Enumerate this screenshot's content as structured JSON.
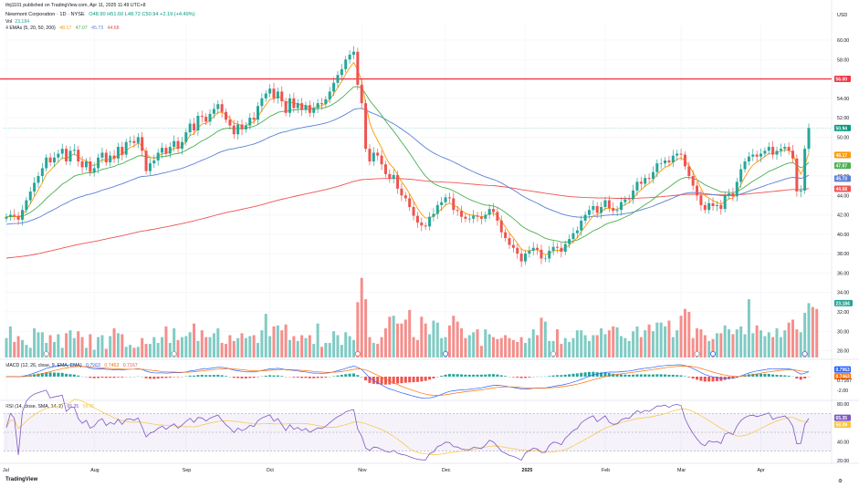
{
  "header": {
    "publisher": "thij1101 published on TradingView.com, Apr 11, 2025 11:49 UTC+8",
    "symbol_line": "Newmont Corporation · 1D · NYSE",
    "ohlc": "O48.90 H51.60 L48.72 C50.94 +2.19 (+4.49%)",
    "vol_label": "Vol",
    "vol_value": "23.184",
    "ema_label": "4 EMAs (5, 20, 50, 200)",
    "ema_values": [
      "48.17",
      "47.07",
      "45.73",
      "44.68"
    ],
    "macd_label": "MACD (12, 26, close, 9, EMA, EMA)",
    "macd_values": [
      "0.7963",
      "0.7463",
      "0.7167"
    ],
    "rsi_label": "RSI (14, close, SMA, 14, 2)",
    "rsi_values": [
      "65.35",
      "58.09"
    ]
  },
  "currency": "USD",
  "watermark": "TradingView",
  "colors": {
    "up": "#26a69a",
    "down": "#ef5350",
    "vol_up": "#80cbc4",
    "vol_down": "#f48f8c",
    "ema5": "#ff9800",
    "ema20": "#4caf50",
    "ema50": "#5b7fd6",
    "ema200": "#f05252",
    "rsi": "#7e57c2",
    "rsi_ma": "#f9c43d",
    "hline": "#f23645"
  },
  "chart_data": {
    "type": "candlestick",
    "x_labels": [
      "Jul",
      "Aug",
      "Sep",
      "Oct",
      "Nov",
      "Dec",
      "2025",
      "Feb",
      "Mar",
      "Apr"
    ],
    "price_ticks": [
      "60.00",
      "58.00",
      "56.00",
      "54.00",
      "52.00",
      "50.00",
      "48.00",
      "46.00",
      "44.00",
      "42.00",
      "40.00",
      "38.00",
      "36.00",
      "34.00",
      "32.00",
      "30.00",
      "28.00"
    ],
    "ylim": [
      27.3,
      61.5
    ],
    "horizontal_line": 56.0,
    "last_close": 50.94,
    "price_badges": [
      {
        "label": "56.00",
        "value": 56.0,
        "color": "#f23645"
      },
      {
        "label": "50.94",
        "value": 50.94,
        "color": "#089981"
      },
      {
        "label": "48.17",
        "value": 48.17,
        "color": "#ff9800"
      },
      {
        "label": "47.07",
        "value": 47.07,
        "color": "#4caf50"
      },
      {
        "label": "45.73",
        "value": 45.73,
        "color": "#5b7fd6"
      },
      {
        "label": "44.68",
        "value": 44.68,
        "color": "#f05252"
      }
    ],
    "vol_badge": "23.184",
    "closes": [
      41.8,
      42.0,
      41.9,
      41.5,
      42.5,
      43.5,
      44.4,
      45.3,
      46.0,
      46.8,
      47.9,
      47.4,
      47.9,
      48.3,
      48.8,
      47.5,
      48.6,
      48.7,
      47.5,
      46.9,
      47.5,
      46.4,
      46.8,
      47.9,
      48.4,
      47.4,
      48.1,
      47.8,
      49.0,
      48.2,
      49.5,
      49.6,
      49.4,
      50.0,
      48.6,
      46.5,
      47.3,
      47.6,
      48.4,
      48.9,
      48.3,
      49.0,
      49.6,
      48.8,
      49.5,
      50.5,
      51.4,
      50.7,
      52.2,
      52.1,
      51.6,
      52.4,
      52.9,
      53.4,
      52.6,
      51.8,
      51.2,
      50.3,
      51.3,
      50.8,
      51.2,
      52.0,
      51.8,
      53.2,
      54.0,
      54.5,
      55.0,
      54.0,
      54.7,
      53.7,
      52.5,
      54.0,
      53.0,
      53.5,
      52.8,
      53.3,
      52.5,
      53.0,
      53.5,
      53.4,
      53.9,
      54.7,
      55.6,
      56.4,
      57.0,
      58.0,
      58.5,
      58.8,
      55.4,
      53.5,
      48.8,
      47.5,
      48.4,
      48.1,
      47.2,
      46.2,
      45.7,
      46.1,
      44.7,
      44.0,
      43.7,
      42.8,
      41.9,
      41.2,
      40.9,
      40.8,
      41.8,
      42.1,
      43.0,
      43.3,
      43.8,
      43.7,
      42.5,
      42.4,
      41.8,
      41.6,
      41.6,
      41.9,
      41.8,
      41.6,
      42.0,
      42.6,
      42.3,
      41.4,
      40.2,
      39.6,
      38.9,
      38.6,
      38.0,
      37.2,
      38.0,
      38.3,
      38.6,
      38.4,
      37.5,
      37.5,
      38.3,
      38.7,
      38.6,
      38.2,
      39.0,
      39.5,
      40.1,
      40.4,
      41.4,
      42.0,
      42.5,
      42.9,
      42.2,
      42.8,
      43.5,
      42.7,
      42.4,
      42.5,
      43.3,
      43.6,
      43.6,
      44.5,
      45.4,
      45.2,
      45.8,
      45.7,
      46.4,
      47.3,
      47.3,
      47.6,
      47.4,
      48.1,
      48.3,
      48.2,
      47.0,
      46.0,
      45.0,
      44.0,
      43.0,
      42.5,
      43.2,
      42.9,
      43.0,
      42.6,
      44.0,
      44.2,
      43.9,
      45.4,
      46.7,
      47.5,
      48.0,
      48.2,
      48.0,
      48.3,
      48.6,
      49.0,
      48.2,
      48.6,
      48.8,
      49.0,
      48.6,
      47.8,
      44.4,
      44.5,
      48.8,
      50.94
    ],
    "volumes": [
      29.3,
      30.5,
      28.9,
      29.5,
      29.1,
      28.6,
      28.3,
      30.3,
      29.9,
      29.9,
      28.8,
      29.6,
      28.9,
      29.7,
      28.3,
      29.8,
      30.1,
      29.3,
      30.0,
      29.4,
      28.3,
      29.7,
      28.1,
      29.4,
      29.6,
      28.2,
      29.5,
      30.3,
      29.8,
      29.7,
      28.4,
      28.6,
      28.3,
      28.4,
      29.3,
      28.7,
      28.7,
      29.4,
      28.8,
      29.4,
      30.5,
      28.8,
      30.3,
      29.1,
      29.4,
      29.5,
      29.9,
      30.8,
      29.0,
      30.1,
      29.4,
      29.4,
      29.8,
      30.3,
      28.8,
      28.7,
      29.6,
      29.0,
      29.3,
      29.8,
      29.3,
      29.5,
      29.6,
      28.8,
      30.1,
      31.8,
      29.5,
      30.5,
      30.6,
      30.1,
      30.7,
      29.1,
      29.5,
      29.0,
      29.6,
      29.3,
      29.6,
      28.7,
      30.8,
      28.4,
      28.8,
      28.8,
      30.0,
      29.6,
      28.6,
      29.9,
      29.5,
      29.1,
      33.0,
      35.5,
      33.3,
      29.4,
      28.8,
      28.7,
      29.4,
      30.3,
      31.5,
      31.6,
      30.8,
      30.8,
      31.2,
      32.2,
      29.4,
      29.1,
      31.5,
      30.8,
      29.7,
      31.1,
      30.9,
      29.3,
      29.4,
      30.6,
      31.6,
      31.0,
      30.3,
      29.3,
      29.6,
      29.9,
      30.2,
      28.5,
      30.2,
      29.7,
      29.4,
      29.2,
      29.3,
      29.6,
      29.3,
      29.1,
      28.9,
      29.4,
      28.8,
      29.3,
      30.2,
      29.6,
      31.4,
      31.0,
      29.0,
      29.0,
      30.2,
      28.7,
      29.3,
      28.9,
      29.3,
      30.1,
      30.1,
      29.6,
      29.0,
      29.6,
      29.6,
      30.3,
      29.7,
      30.1,
      30.5,
      30.4,
      29.5,
      29.3,
      29.0,
      30.0,
      30.5,
      29.4,
      30.1,
      30.7,
      30.0,
      30.9,
      30.9,
      30.5,
      31.1,
      29.4,
      30.1,
      31.6,
      32.3,
      32.0,
      29.3,
      30.3,
      30.2,
      29.6,
      29.0,
      29.2,
      29.8,
      29.8,
      30.6,
      30.2,
      29.7,
      30.2,
      30.5,
      29.7,
      33.3,
      29.8,
      30.6,
      30.1,
      29.5,
      29.9,
      29.4,
      30.3,
      29.4,
      30.1,
      30.9,
      31.2,
      30.2,
      29.9,
      31.9,
      32.9,
      32.5,
      32.3
    ],
    "macd_ylim": [
      -3.2,
      1.6
    ],
    "rsi_ylim": [
      20,
      80
    ],
    "rsi_levels": [
      70,
      50,
      30
    ],
    "macd_ticks": [
      "0.7963",
      "0.7463",
      "-2.00",
      "0.7167"
    ],
    "rsi_ticks": [
      "80.00",
      "65.35",
      "58.09",
      "40.00",
      "20.00"
    ]
  }
}
